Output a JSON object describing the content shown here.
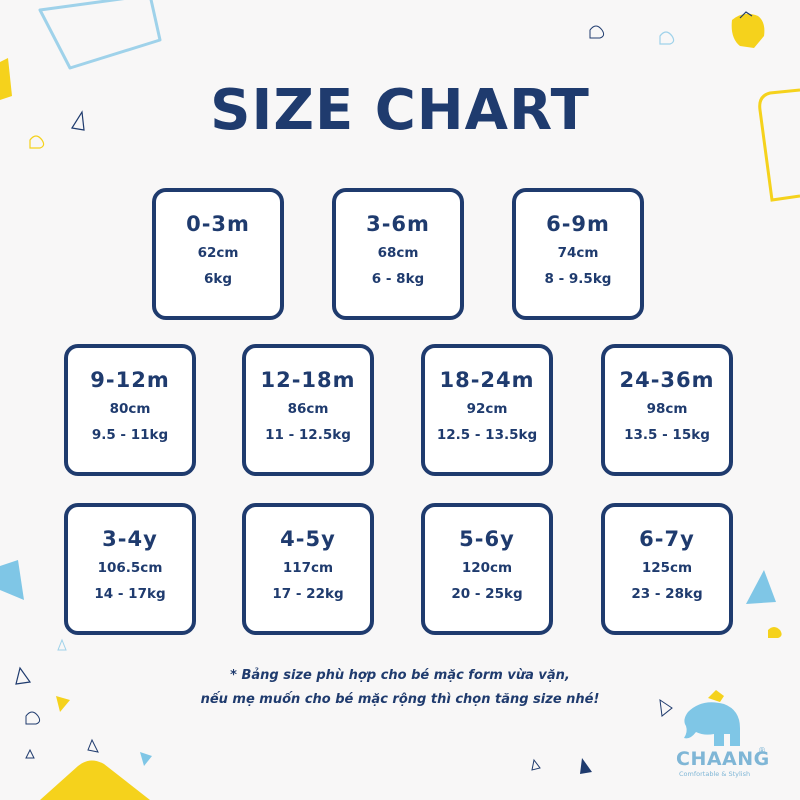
{
  "title": "SIZE CHART",
  "sizes": [
    {
      "age": "0-3m",
      "height": "62cm",
      "weight": "6kg"
    },
    {
      "age": "3-6m",
      "height": "68cm",
      "weight": "6 - 8kg"
    },
    {
      "age": "6-9m",
      "height": "74cm",
      "weight": "8 - 9.5kg"
    },
    {
      "age": "9-12m",
      "height": "80cm",
      "weight": "9.5 - 11kg"
    },
    {
      "age": "12-18m",
      "height": "86cm",
      "weight": "11 - 12.5kg"
    },
    {
      "age": "18-24m",
      "height": "92cm",
      "weight": "12.5 - 13.5kg"
    },
    {
      "age": "24-36m",
      "height": "98cm",
      "weight": "13.5 - 15kg"
    },
    {
      "age": "3-4y",
      "height": "106.5cm",
      "weight": "14 - 17kg"
    },
    {
      "age": "4-5y",
      "height": "117cm",
      "weight": "17 - 22kg"
    },
    {
      "age": "5-6y",
      "height": "120cm",
      "weight": "20 - 25kg"
    },
    {
      "age": "6-7y",
      "height": "125cm",
      "weight": "23 - 28kg"
    }
  ],
  "note": {
    "line1": "* Bảng size phù hợp cho bé mặc form vừa vặn,",
    "line2": "nếu mẹ muốn cho bé mặc rộng thì chọn tăng size nhé!"
  },
  "brand": {
    "name": "CHAANG",
    "registered": "®",
    "tagline": "Comfortable & Stylish"
  },
  "colors": {
    "navy": "#1f3b6e",
    "yellow": "#f5d21c",
    "light_blue": "#7fc6e6",
    "background": "#f8f7f7"
  }
}
